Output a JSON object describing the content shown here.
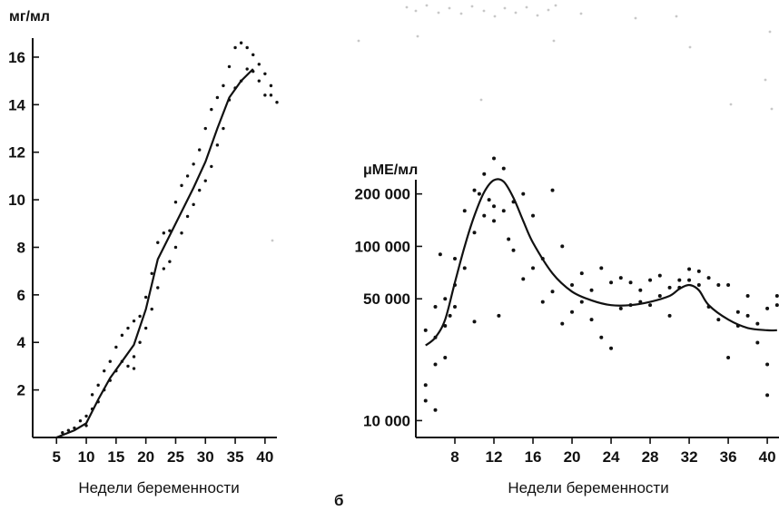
{
  "chart_data": [
    {
      "type": "line",
      "ylabel": "мг/мл",
      "xlabel": "Недели беременности",
      "x_ticks": [
        5,
        10,
        15,
        20,
        25,
        30,
        35,
        40
      ],
      "y_ticks": [
        2,
        4,
        6,
        8,
        10,
        12,
        14,
        16
      ],
      "xlim": [
        1,
        42
      ],
      "ylim": [
        0,
        16.8
      ],
      "grid": false,
      "series": [
        {
          "style": "solid-line",
          "x": [
            5,
            8,
            10,
            12,
            14,
            16,
            18,
            20,
            22,
            25,
            28,
            30,
            32,
            34,
            36,
            38
          ],
          "y": [
            0,
            0.3,
            0.6,
            1.6,
            2.5,
            3.2,
            3.9,
            5.4,
            7.5,
            9.0,
            10.5,
            11.6,
            13.0,
            14.3,
            15.0,
            15.5
          ]
        },
        {
          "style": "dots",
          "x": [
            6,
            7,
            8,
            9,
            10,
            10,
            11,
            11,
            12,
            12,
            13,
            13,
            14,
            14,
            15,
            15,
            16,
            16,
            17,
            17,
            18,
            18,
            18,
            19,
            19,
            20,
            20,
            21,
            21,
            22,
            22,
            23,
            23,
            24,
            24,
            25,
            25,
            26,
            26,
            27,
            27,
            28,
            28,
            29,
            29,
            30,
            30,
            31,
            31,
            32,
            32,
            33,
            33,
            34,
            34,
            35,
            35,
            36,
            36,
            37,
            37,
            38,
            38,
            39,
            39,
            40,
            40,
            41,
            41,
            42
          ],
          "y": [
            0.2,
            0.3,
            0.4,
            0.7,
            0.5,
            0.9,
            1.2,
            1.8,
            1.5,
            2.2,
            2.0,
            2.8,
            2.4,
            3.2,
            2.8,
            3.8,
            3.2,
            4.3,
            3.0,
            4.6,
            3.4,
            4.9,
            2.9,
            4.0,
            5.1,
            4.6,
            5.9,
            5.4,
            6.9,
            6.3,
            8.2,
            7.1,
            8.6,
            7.4,
            8.7,
            8.0,
            9.9,
            8.6,
            10.6,
            9.3,
            11.0,
            9.8,
            11.5,
            10.4,
            12.1,
            10.8,
            13.0,
            11.4,
            13.8,
            12.3,
            14.3,
            13.0,
            14.8,
            14.2,
            15.6,
            14.7,
            16.4,
            15.0,
            16.6,
            15.5,
            16.4,
            15.4,
            16.1,
            15.0,
            15.7,
            14.4,
            15.3,
            14.8,
            14.4,
            14.1
          ]
        }
      ]
    },
    {
      "type": "line",
      "panel_label": "б",
      "ylabel": "μМЕ/мл",
      "xlabel": "Недели беременности",
      "x_ticks": [
        8,
        12,
        16,
        20,
        24,
        28,
        32,
        36,
        40
      ],
      "y_ticks": [
        {
          "value": 10000,
          "label": "10 000"
        },
        {
          "value": 50000,
          "label": "50 000"
        },
        {
          "value": 100000,
          "label": "100 000"
        },
        {
          "value": 200000,
          "label": "200 000"
        }
      ],
      "yscale": "log",
      "xlim": [
        4,
        41.2
      ],
      "ylim": [
        8000,
        230000
      ],
      "grid": false,
      "series": [
        {
          "style": "solid-line",
          "x": [
            5,
            6,
            7,
            8,
            9,
            10,
            11,
            12,
            13,
            14,
            15,
            16,
            18,
            20,
            22,
            24,
            26,
            28,
            30,
            31,
            32,
            33,
            34,
            36,
            38,
            40,
            41
          ],
          "y": [
            27000,
            30000,
            38000,
            62000,
            100000,
            150000,
            205000,
            240000,
            235000,
            190000,
            140000,
            105000,
            70000,
            55000,
            49000,
            46000,
            46000,
            48000,
            52000,
            57000,
            60000,
            56000,
            46000,
            38000,
            34000,
            33000,
            33000
          ]
        },
        {
          "style": "dots",
          "x": [
            5,
            5,
            5,
            6,
            6,
            6,
            6,
            6.5,
            7,
            7,
            7,
            7.5,
            8,
            8,
            8,
            9,
            9,
            10,
            10,
            10,
            10.5,
            11,
            11,
            11.5,
            12,
            12,
            12,
            12.5,
            13,
            13,
            13.5,
            14,
            14,
            15,
            15,
            16,
            16,
            17,
            17,
            18,
            18,
            19,
            19,
            20,
            20,
            21,
            21,
            22,
            22,
            23,
            23,
            24,
            24,
            25,
            25,
            26,
            26,
            27,
            27,
            28,
            28,
            29,
            29,
            30,
            30,
            31,
            31,
            32,
            32,
            33,
            33,
            34,
            34,
            35,
            35,
            36,
            36,
            37,
            37,
            38,
            38,
            39,
            39,
            40,
            40,
            40,
            41,
            41
          ],
          "y": [
            33000,
            16000,
            13000,
            45000,
            30000,
            21000,
            11500,
            90000,
            50000,
            35000,
            23000,
            40000,
            85000,
            60000,
            45000,
            160000,
            75000,
            210000,
            120000,
            37000,
            200000,
            260000,
            150000,
            185000,
            320000,
            170000,
            140000,
            40000,
            280000,
            160000,
            110000,
            180000,
            95000,
            200000,
            65000,
            150000,
            75000,
            85000,
            48000,
            210000,
            55000,
            100000,
            36000,
            60000,
            42000,
            70000,
            48000,
            56000,
            38000,
            75000,
            30000,
            62000,
            26000,
            66000,
            44000,
            62000,
            46000,
            56000,
            48000,
            64000,
            46000,
            68000,
            52000,
            58000,
            40000,
            64000,
            58000,
            74000,
            64000,
            72000,
            60000,
            66000,
            45000,
            60000,
            38000,
            60000,
            23000,
            42000,
            35000,
            52000,
            40000,
            36000,
            28000,
            44000,
            21000,
            14000,
            52000,
            46000
          ]
        }
      ]
    }
  ],
  "decorations": {
    "ink_color": "#111111",
    "smudge_color": "#c8c8c8"
  }
}
